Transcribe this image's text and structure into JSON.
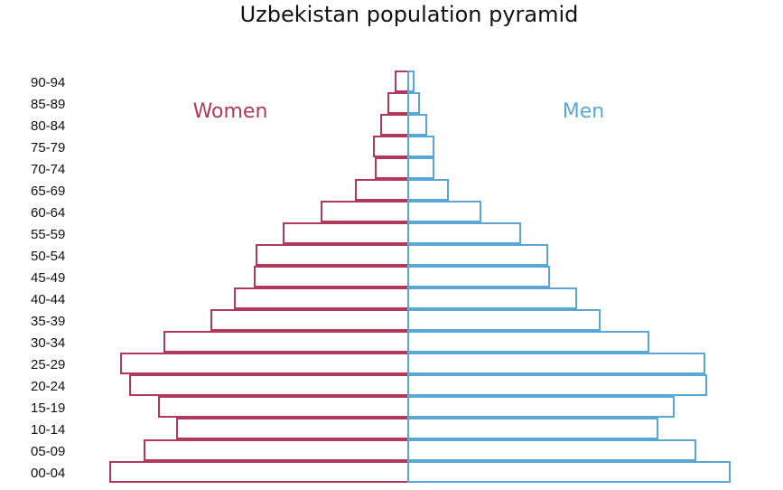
{
  "chart_data": {
    "type": "bar",
    "orientation": "horizontal-pyramid",
    "title": "Uzbekistan population pyramid",
    "categories": [
      "00-04",
      "05-09",
      "10-14",
      "15-19",
      "20-24",
      "25-29",
      "30-34",
      "35-39",
      "40-44",
      "45-49",
      "50-54",
      "55-59",
      "60-64",
      "65-69",
      "70-74",
      "75-79",
      "80-84",
      "85-89",
      "90-94"
    ],
    "series": [
      {
        "name": "Women",
        "color": "#b0385b",
        "side": "left",
        "values": [
          330,
          292,
          256,
          276,
          308,
          318,
          270,
          218,
          192,
          170,
          168,
          138,
          96,
          58,
          36,
          38,
          30,
          22,
          14
        ]
      },
      {
        "name": "Men",
        "color": "#5aa6d6",
        "side": "right",
        "values": [
          356,
          318,
          276,
          294,
          330,
          328,
          266,
          212,
          186,
          156,
          154,
          124,
          80,
          44,
          28,
          28,
          20,
          12,
          6
        ]
      }
    ],
    "grid": false,
    "legend": "inline-top"
  }
}
